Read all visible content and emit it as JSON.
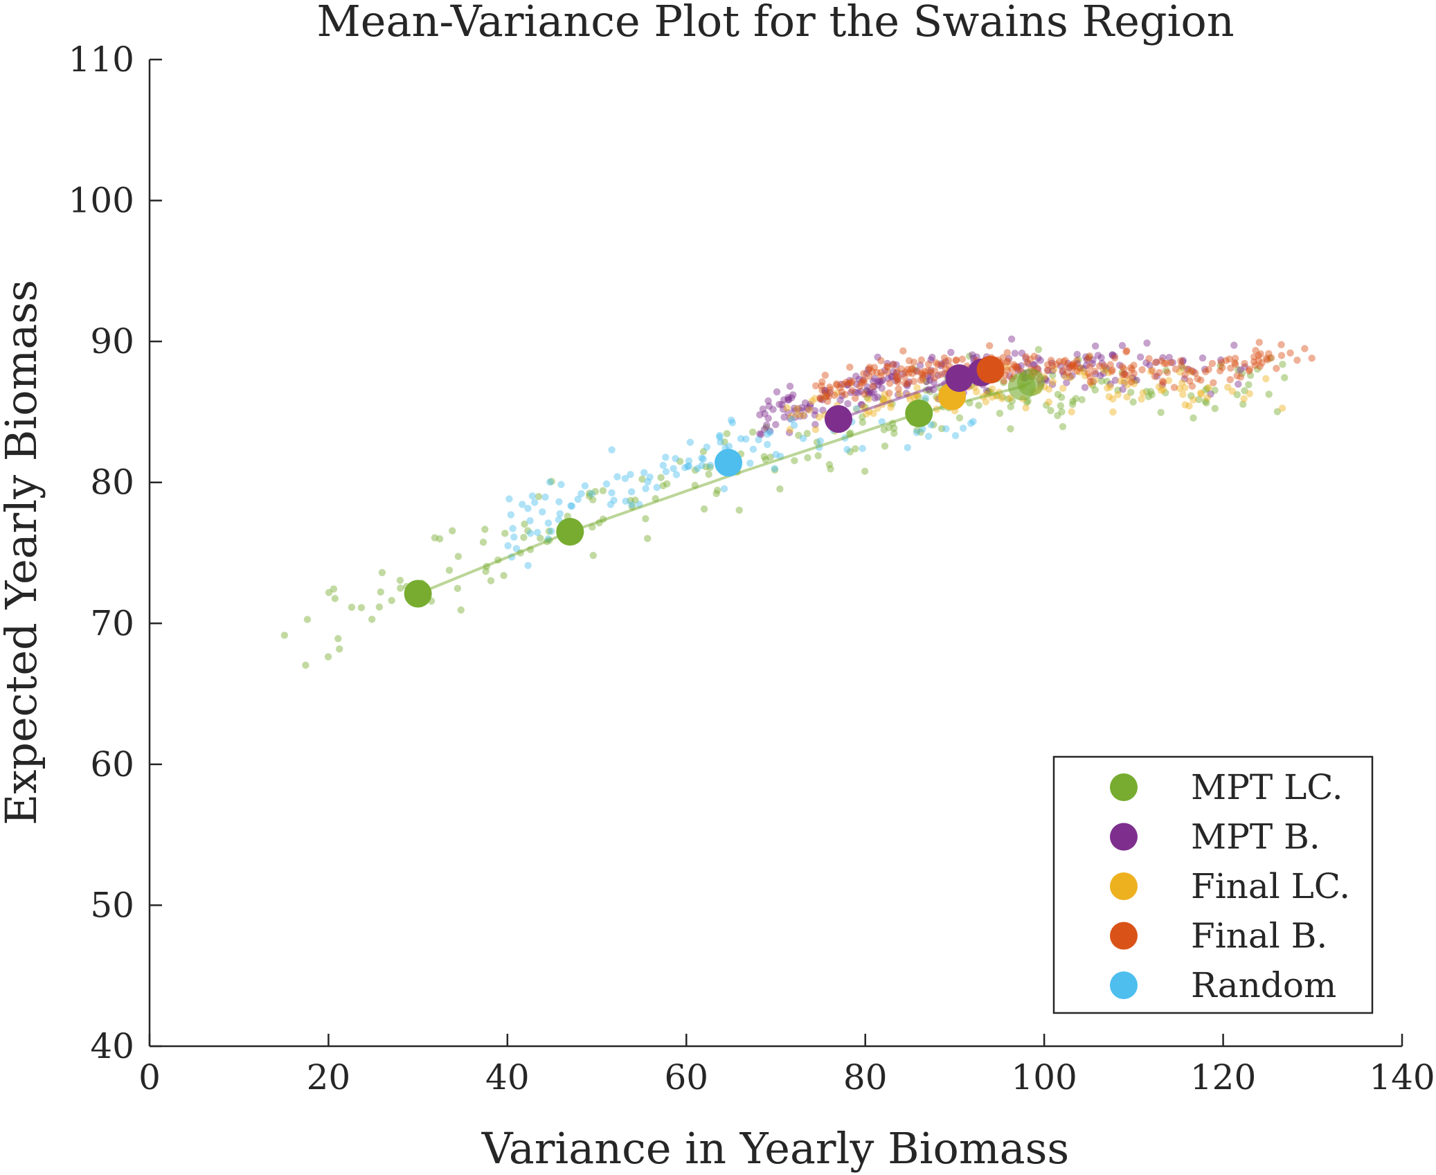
{
  "chart_data": {
    "type": "scatter",
    "title": "Mean-Variance Plot for the Swains Region",
    "xlabel": "Variance in Yearly Biomass",
    "ylabel": "Expected Yearly Biomass",
    "xlim": [
      0,
      140
    ],
    "ylim": [
      40,
      110
    ],
    "xticks": [
      0,
      20,
      40,
      60,
      80,
      100,
      120,
      140
    ],
    "yticks": [
      40,
      50,
      60,
      70,
      80,
      90,
      100,
      110
    ],
    "xtick_labels": [
      "0",
      "20",
      "40",
      "60",
      "80",
      "100",
      "120",
      "140"
    ],
    "ytick_labels": [
      "40",
      "50",
      "60",
      "70",
      "80",
      "90",
      "100",
      "110"
    ],
    "grid": false,
    "legend_position": "bottom-right",
    "series": [
      {
        "name": "MPT LC.",
        "color": "#77AC30",
        "highlight_points": [
          [
            30,
            72.1
          ],
          [
            47,
            76.5
          ],
          [
            86,
            84.9
          ],
          [
            97.5,
            86.8
          ],
          [
            98.5,
            87.1
          ]
        ],
        "frontier_line": [
          [
            30,
            72.1
          ],
          [
            47,
            76.5
          ],
          [
            65,
            80.5
          ],
          [
            86,
            84.9
          ],
          [
            97.5,
            86.8
          ],
          [
            98.5,
            87.1
          ]
        ],
        "cloud_center": [
          [
            15,
            69.2
          ],
          [
            25,
            71.8
          ],
          [
            35,
            74.5
          ],
          [
            45,
            76.8
          ],
          [
            60,
            80.2
          ],
          [
            75,
            83.2
          ],
          [
            90,
            85.8
          ],
          [
            105,
            87.1
          ],
          [
            120,
            86.6
          ],
          [
            127,
            86.9
          ]
        ],
        "cloud_spread": 2.4
      },
      {
        "name": "MPT B.",
        "color": "#7E2F8E",
        "highlight_points": [
          [
            77,
            84.5
          ],
          [
            90.5,
            87.4
          ],
          [
            93,
            87.8
          ]
        ],
        "frontier_line": [
          [
            77,
            84.5
          ],
          [
            90.5,
            87.4
          ],
          [
            93,
            87.8
          ]
        ],
        "cloud_center": [
          [
            62,
            83.3
          ],
          [
            72,
            85.3
          ],
          [
            82,
            87.1
          ],
          [
            92,
            88.1
          ],
          [
            102,
            88.2
          ],
          [
            112,
            87.9
          ],
          [
            124,
            88.3
          ]
        ],
        "cloud_spread": 1.4
      },
      {
        "name": "Final LC.",
        "color": "#EDB120",
        "highlight_points": [
          [
            89.7,
            86.1
          ]
        ],
        "frontier_line": [],
        "cloud_center": [
          [
            65,
            83.6
          ],
          [
            75,
            84.8
          ],
          [
            85,
            85.9
          ],
          [
            95,
            86.6
          ],
          [
            105,
            86.9
          ],
          [
            115,
            86.6
          ],
          [
            127,
            86.6
          ]
        ],
        "cloud_spread": 1.4
      },
      {
        "name": "Final B.",
        "color": "#D95319",
        "highlight_points": [
          [
            94,
            88
          ]
        ],
        "frontier_line": [],
        "cloud_center": [
          [
            68,
            85.2
          ],
          [
            78,
            87.2
          ],
          [
            88,
            88.1
          ],
          [
            98,
            88.3
          ],
          [
            108,
            88.1
          ],
          [
            118,
            87.7
          ],
          [
            130.5,
            89.6
          ]
        ],
        "cloud_spread": 1.0
      },
      {
        "name": "Random",
        "color": "#4DBEEE",
        "highlight_points": [
          [
            64.7,
            81.4
          ]
        ],
        "frontier_line": [],
        "cloud_center": [
          [
            34,
            74.8
          ],
          [
            45,
            78.2
          ],
          [
            55,
            80.5
          ],
          [
            65,
            82.3
          ],
          [
            75,
            83.1
          ],
          [
            85,
            83.7
          ],
          [
            93,
            84.6
          ]
        ],
        "cloud_spread": 2.0
      }
    ],
    "scatter_counts": [
      230,
      240,
      130,
      260,
      110
    ]
  }
}
